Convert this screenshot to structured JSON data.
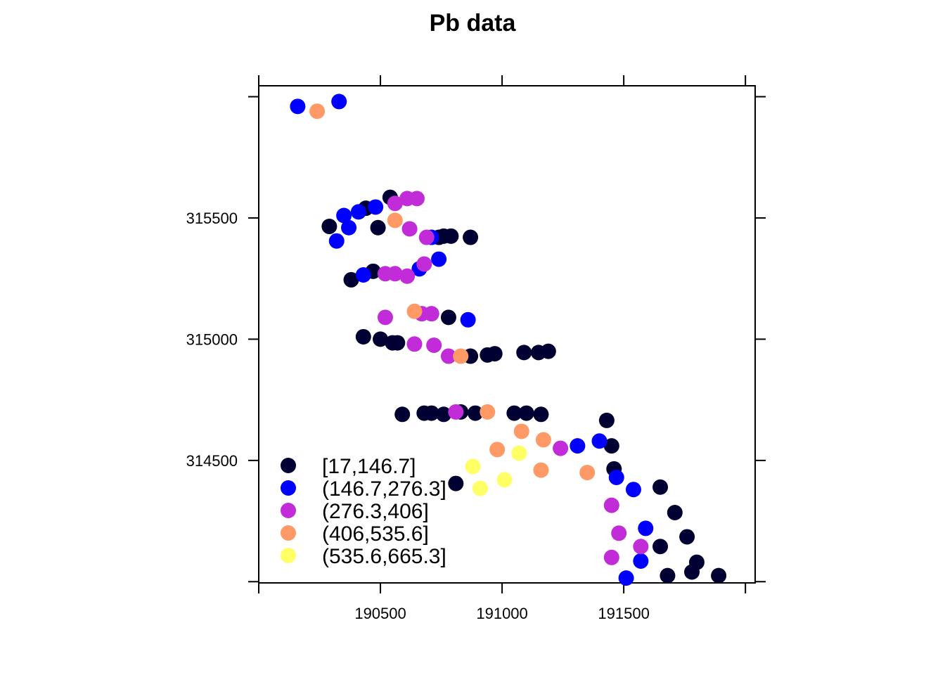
{
  "chart_data": {
    "type": "scatter",
    "title": "Pb data",
    "xlabel": "",
    "ylabel": "",
    "xlim": [
      190000,
      192040
    ],
    "ylim": [
      313995,
      316045
    ],
    "x_ticks": [
      190000,
      190500,
      191000,
      191500,
      192000
    ],
    "x_tick_labels": [
      "",
      "190500",
      "191000",
      "191500",
      ""
    ],
    "y_ticks": [
      314000,
      314500,
      315000,
      315500,
      316000
    ],
    "y_tick_labels": [
      "",
      "314500",
      "315000",
      "315500",
      ""
    ],
    "grid": false,
    "legend_position": "bottom-left",
    "series": [
      {
        "name": "[17,146.7]",
        "color": "#000033",
        "points": [
          [
            190290,
            315465
          ],
          [
            190440,
            315540
          ],
          [
            190540,
            315585
          ],
          [
            190490,
            315460
          ],
          [
            190740,
            315420
          ],
          [
            190760,
            315425
          ],
          [
            190790,
            315425
          ],
          [
            190870,
            315420
          ],
          [
            190470,
            315280
          ],
          [
            190380,
            315245
          ],
          [
            190780,
            315090
          ],
          [
            190430,
            315010
          ],
          [
            190500,
            315000
          ],
          [
            190550,
            314985
          ],
          [
            190570,
            314985
          ],
          [
            190870,
            314930
          ],
          [
            190940,
            314935
          ],
          [
            190970,
            314940
          ],
          [
            191090,
            314945
          ],
          [
            191150,
            314945
          ],
          [
            191190,
            314950
          ],
          [
            190590,
            314690
          ],
          [
            190680,
            314695
          ],
          [
            190710,
            314695
          ],
          [
            190760,
            314690
          ],
          [
            190890,
            314695
          ],
          [
            191050,
            314695
          ],
          [
            191100,
            314695
          ],
          [
            191160,
            314690
          ],
          [
            191430,
            314665
          ],
          [
            191450,
            314560
          ],
          [
            191460,
            314465
          ],
          [
            191650,
            314390
          ],
          [
            191710,
            314285
          ],
          [
            191760,
            314185
          ],
          [
            191650,
            314145
          ],
          [
            191800,
            314080
          ],
          [
            191780,
            314040
          ],
          [
            191890,
            314025
          ],
          [
            191680,
            314025
          ],
          [
            190810,
            314405
          ],
          [
            190830,
            314700
          ]
        ]
      },
      {
        "name": "(146.7,276.3]",
        "color": "#0000FF",
        "points": [
          [
            190160,
            315960
          ],
          [
            190330,
            315980
          ],
          [
            190350,
            315510
          ],
          [
            190410,
            315525
          ],
          [
            190370,
            315460
          ],
          [
            190480,
            315545
          ],
          [
            190320,
            315405
          ],
          [
            190710,
            315420
          ],
          [
            190430,
            315265
          ],
          [
            190660,
            315290
          ],
          [
            190740,
            315330
          ],
          [
            190860,
            315080
          ],
          [
            191310,
            314560
          ],
          [
            191400,
            314580
          ],
          [
            191470,
            314430
          ],
          [
            191540,
            314380
          ],
          [
            191590,
            314220
          ],
          [
            191570,
            314085
          ],
          [
            191510,
            314015
          ]
        ]
      },
      {
        "name": "(276.3,406]",
        "color": "#C12BD8",
        "points": [
          [
            190560,
            315560
          ],
          [
            190610,
            315580
          ],
          [
            190650,
            315580
          ],
          [
            190620,
            315455
          ],
          [
            190690,
            315420
          ],
          [
            190520,
            315270
          ],
          [
            190560,
            315270
          ],
          [
            190610,
            315260
          ],
          [
            190680,
            315310
          ],
          [
            190520,
            315090
          ],
          [
            190670,
            315105
          ],
          [
            190710,
            315105
          ],
          [
            190640,
            314980
          ],
          [
            190720,
            314975
          ],
          [
            190780,
            314930
          ],
          [
            190810,
            314700
          ],
          [
            191240,
            314550
          ],
          [
            191450,
            314315
          ],
          [
            191480,
            314200
          ],
          [
            191570,
            314145
          ],
          [
            191450,
            314100
          ]
        ]
      },
      {
        "name": "(406,535.6]",
        "color": "#FF9966",
        "points": [
          [
            190240,
            315940
          ],
          [
            190560,
            315490
          ],
          [
            190640,
            315115
          ],
          [
            190830,
            314930
          ],
          [
            190940,
            314700
          ],
          [
            190980,
            314545
          ],
          [
            191080,
            314620
          ],
          [
            191170,
            314585
          ],
          [
            191160,
            314460
          ],
          [
            191350,
            314450
          ]
        ]
      },
      {
        "name": "(535.6,665.3]",
        "color": "#FFFF66",
        "points": [
          [
            190880,
            314475
          ],
          [
            190910,
            314385
          ],
          [
            191010,
            314420
          ],
          [
            191070,
            314530
          ]
        ]
      }
    ]
  }
}
